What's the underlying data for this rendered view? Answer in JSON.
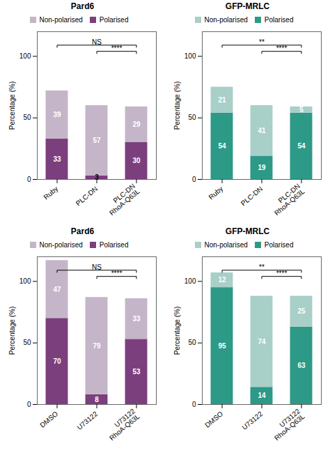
{
  "chart_data": [
    {
      "type": "bar",
      "stacked": true,
      "title": "Pard6",
      "categories": [
        "Ruby",
        "PLC-DN",
        "PLC-DN\nRhoA-Q63L"
      ],
      "series": [
        {
          "name": "Polarised",
          "color": "#7b3f7e",
          "values": [
            33,
            3,
            30
          ]
        },
        {
          "name": "Non-polarised",
          "color": "#c4b5c9",
          "values": [
            39,
            57,
            29
          ]
        }
      ],
      "ylabel": "Percentage (%)",
      "ylim": [
        0,
        120
      ],
      "yticks": [
        0,
        50,
        100
      ],
      "grid": false,
      "legend": "top",
      "data_labels": true,
      "annotations": [
        {
          "text": "****",
          "x": [
            "PLC-DN",
            "PLC-DN\nRhoA-Q63L"
          ]
        },
        {
          "text": "NS",
          "x": [
            "Ruby",
            "PLC-DN\nRhoA-Q63L"
          ]
        }
      ]
    },
    {
      "type": "bar",
      "stacked": true,
      "title": "GFP-MRLC",
      "categories": [
        "Ruby",
        "PLC-DN",
        "PLC-DN\nRhoA-Q63L"
      ],
      "series": [
        {
          "name": "Polarised",
          "color": "#2d9987",
          "values": [
            54,
            19,
            54
          ]
        },
        {
          "name": "Non-polarised",
          "color": "#a8cfc8",
          "values": [
            21,
            41,
            5
          ]
        }
      ],
      "ylabel": "Percentage (%)",
      "ylim": [
        0,
        120
      ],
      "yticks": [
        0,
        50,
        100
      ],
      "grid": false,
      "legend": "top",
      "data_labels": true,
      "annotations": [
        {
          "text": "****",
          "x": [
            "PLC-DN",
            "PLC-DN\nRhoA-Q63L"
          ]
        },
        {
          "text": "**",
          "x": [
            "Ruby",
            "PLC-DN\nRhoA-Q63L"
          ]
        }
      ]
    },
    {
      "type": "bar",
      "stacked": true,
      "title": "Pard6",
      "categories": [
        "DMSO",
        "U73122",
        "U73122\nRhoA-Q63L"
      ],
      "series": [
        {
          "name": "Polarised",
          "color": "#7b3f7e",
          "values": [
            70,
            8,
            53
          ]
        },
        {
          "name": "Non-polarised",
          "color": "#c4b5c9",
          "values": [
            47,
            79,
            33
          ]
        }
      ],
      "ylabel": "Percentage (%)",
      "ylim": [
        0,
        120
      ],
      "yticks": [
        0,
        50,
        100
      ],
      "grid": false,
      "legend": "top",
      "data_labels": true,
      "annotations": [
        {
          "text": "****",
          "x": [
            "U73122",
            "U73122\nRhoA-Q63L"
          ]
        },
        {
          "text": "NS",
          "x": [
            "DMSO",
            "U73122\nRhoA-Q63L"
          ]
        }
      ]
    },
    {
      "type": "bar",
      "stacked": true,
      "title": "GFP-MRLC",
      "categories": [
        "DMSO",
        "U73122",
        "U73122\nRhoA-Q63L"
      ],
      "series": [
        {
          "name": "Polarised",
          "color": "#2d9987",
          "values": [
            95,
            14,
            63
          ]
        },
        {
          "name": "Non-polarised",
          "color": "#a8cfc8",
          "values": [
            12,
            74,
            25
          ]
        }
      ],
      "ylabel": "Percentage (%)",
      "ylim": [
        0,
        120
      ],
      "yticks": [
        0,
        50,
        100
      ],
      "grid": false,
      "legend": "top",
      "data_labels": true,
      "annotations": [
        {
          "text": "****",
          "x": [
            "U73122",
            "U73122\nRhoA-Q63L"
          ]
        },
        {
          "text": "**",
          "x": [
            "DMSO",
            "U73122\nRhoA-Q63L"
          ]
        }
      ]
    }
  ]
}
